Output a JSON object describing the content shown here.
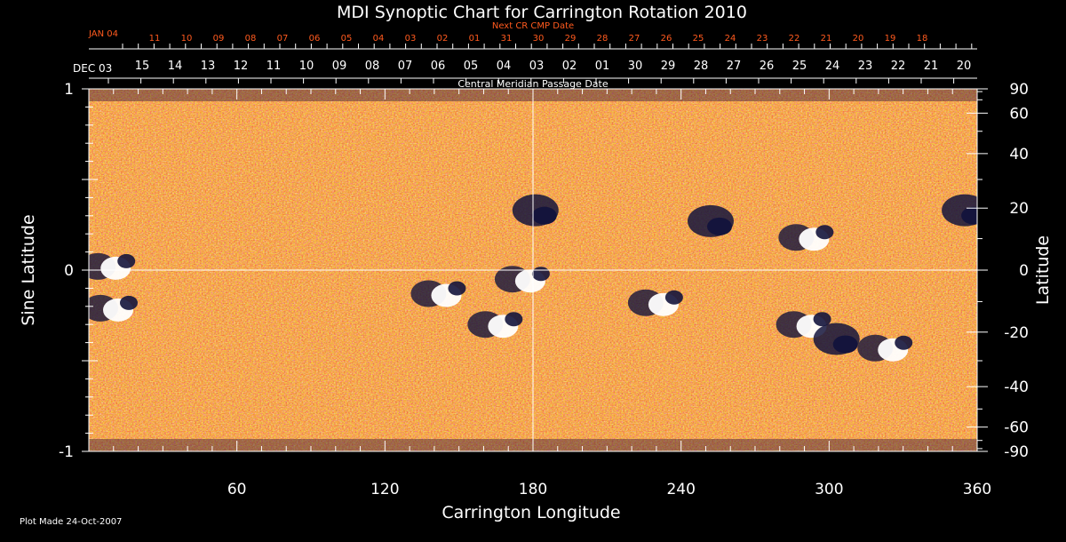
{
  "chart_data": {
    "type": "heatmap",
    "title": "MDI Synoptic Chart for Carrington Rotation 2010",
    "xlabel": "Carrington Longitude",
    "ylabel_left": "Sine Latitude",
    "ylabel_right": "Latitude",
    "x_range": [
      0,
      360
    ],
    "x_ticks": [
      60,
      120,
      180,
      240,
      300,
      360
    ],
    "y_left_range": [
      -1,
      1
    ],
    "y_left_ticks": [
      1,
      0,
      -1
    ],
    "y_right_ticks": [
      90,
      60,
      40,
      20,
      0,
      -20,
      -40,
      -60,
      -90
    ],
    "top_axis": {
      "label": "Central Meridian Passage Date",
      "start_label": "DEC 03",
      "dates": [
        "15",
        "14",
        "13",
        "12",
        "11",
        "10",
        "09",
        "08",
        "07",
        "06",
        "05",
        "04",
        "03",
        "02",
        "01",
        "30",
        "29",
        "28",
        "27",
        "26",
        "25",
        "24",
        "23",
        "22",
        "21",
        "20"
      ]
    },
    "next_axis": {
      "label": "Next CR CMP Date",
      "start_label": "JAN 04",
      "dates": [
        "11",
        "10",
        "09",
        "08",
        "07",
        "06",
        "05",
        "04",
        "03",
        "02",
        "01",
        "31",
        "30",
        "29",
        "28",
        "27",
        "26",
        "25",
        "24",
        "23",
        "22",
        "21",
        "20",
        "19",
        "18"
      ]
    },
    "gridlines": {
      "x": [
        180
      ],
      "y": [
        0
      ]
    },
    "colors": {
      "background": "#c83a10",
      "positive": "#ffffff",
      "negative": "#14143c",
      "accent_red": "#ff5a1e"
    },
    "features": [
      {
        "lon": 8,
        "sinlat": 0.02,
        "polarity": "mixed"
      },
      {
        "lon": 9,
        "sinlat": -0.21,
        "polarity": "mixed"
      },
      {
        "lon": 142,
        "sinlat": -0.13,
        "polarity": "mixed"
      },
      {
        "lon": 165,
        "sinlat": -0.3,
        "polarity": "mixed"
      },
      {
        "lon": 176,
        "sinlat": -0.05,
        "polarity": "mixed"
      },
      {
        "lon": 181,
        "sinlat": 0.33,
        "polarity": "negative"
      },
      {
        "lon": 230,
        "sinlat": -0.18,
        "polarity": "mixed"
      },
      {
        "lon": 252,
        "sinlat": 0.27,
        "polarity": "negative"
      },
      {
        "lon": 291,
        "sinlat": 0.18,
        "polarity": "mixed"
      },
      {
        "lon": 290,
        "sinlat": -0.3,
        "polarity": "mixed"
      },
      {
        "lon": 303,
        "sinlat": -0.38,
        "polarity": "negative"
      },
      {
        "lon": 323,
        "sinlat": -0.43,
        "polarity": "mixed"
      },
      {
        "lon": 355,
        "sinlat": 0.33,
        "polarity": "negative"
      }
    ]
  },
  "footer": {
    "plot_made": "Plot Made 24-Oct-2007"
  }
}
